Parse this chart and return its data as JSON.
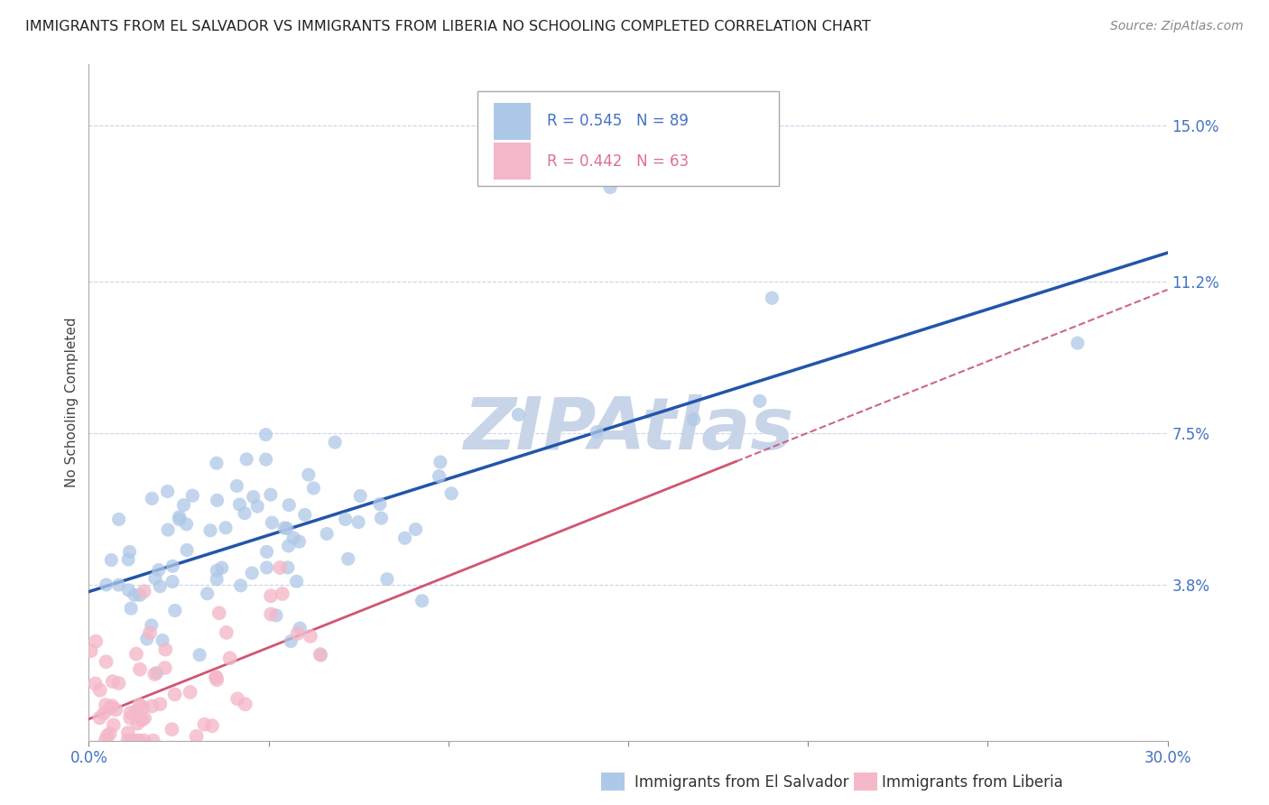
{
  "title": "IMMIGRANTS FROM EL SALVADOR VS IMMIGRANTS FROM LIBERIA NO SCHOOLING COMPLETED CORRELATION CHART",
  "source": "Source: ZipAtlas.com",
  "ylabel": "No Schooling Completed",
  "xlim": [
    0.0,
    0.3
  ],
  "ylim": [
    0.0,
    0.165
  ],
  "ytick_right_vals": [
    0.0,
    0.038,
    0.075,
    0.112,
    0.15
  ],
  "ytick_right_labels": [
    "",
    "3.8%",
    "7.5%",
    "11.2%",
    "15.0%"
  ],
  "R_blue": 0.545,
  "N_blue": 89,
  "R_pink": 0.442,
  "N_pink": 63,
  "blue_color": "#aec8e8",
  "pink_color": "#f4b8c8",
  "blue_line_color": "#2255aa",
  "pink_line_color": "#d05570",
  "pink_dash_color": "#cc6688",
  "watermark": "ZIPAtlas",
  "watermark_color": "#c8d4e8",
  "title_fontsize": 11.5,
  "axis_label_fontsize": 11,
  "tick_fontsize": 12,
  "legend_fontsize": 12,
  "source_fontsize": 10,
  "background_color": "#ffffff",
  "grid_color": "#c8d4e8",
  "tick_color": "#4472c4",
  "seed": 42
}
